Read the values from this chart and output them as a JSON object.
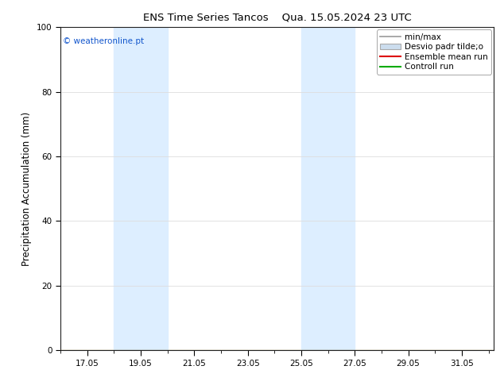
{
  "title_left": "ENS Time Series Tancos",
  "title_right": "Qua. 15.05.2024 23 UTC",
  "ylabel": "Precipitation Accumulation (mm)",
  "ylim": [
    0,
    100
  ],
  "yticks": [
    0,
    20,
    40,
    60,
    80,
    100
  ],
  "xtick_labels": [
    "17.05",
    "19.05",
    "21.05",
    "23.05",
    "25.05",
    "27.05",
    "29.05",
    "31.05"
  ],
  "xtick_positions": [
    17,
    19,
    21,
    23,
    25,
    27,
    29,
    31
  ],
  "x_min": 16.0,
  "x_max": 32.2,
  "weekend_bands": [
    {
      "start": 18.0,
      "end": 20.0
    },
    {
      "start": 25.0,
      "end": 27.0
    }
  ],
  "band_color": "#ddeeff",
  "copyright_text": "© weatheronline.pt",
  "copyright_color": "#1155cc",
  "legend_entries": [
    {
      "label": "min/max",
      "color": "#999999",
      "linewidth": 1.2,
      "type": "line"
    },
    {
      "label": "Desvio padr tilde;o",
      "color": "#ccddee",
      "border_color": "#aaaaaa",
      "linewidth": 6,
      "type": "patch"
    },
    {
      "label": "Ensemble mean run",
      "color": "#dd0000",
      "linewidth": 1.5,
      "type": "line"
    },
    {
      "label": "Controll run",
      "color": "#00aa00",
      "linewidth": 1.5,
      "type": "line"
    }
  ],
  "bg_color": "#ffffff",
  "grid_color": "#dddddd",
  "title_fontsize": 9.5,
  "tick_fontsize": 7.5,
  "ylabel_fontsize": 8.5,
  "legend_fontsize": 7.5
}
